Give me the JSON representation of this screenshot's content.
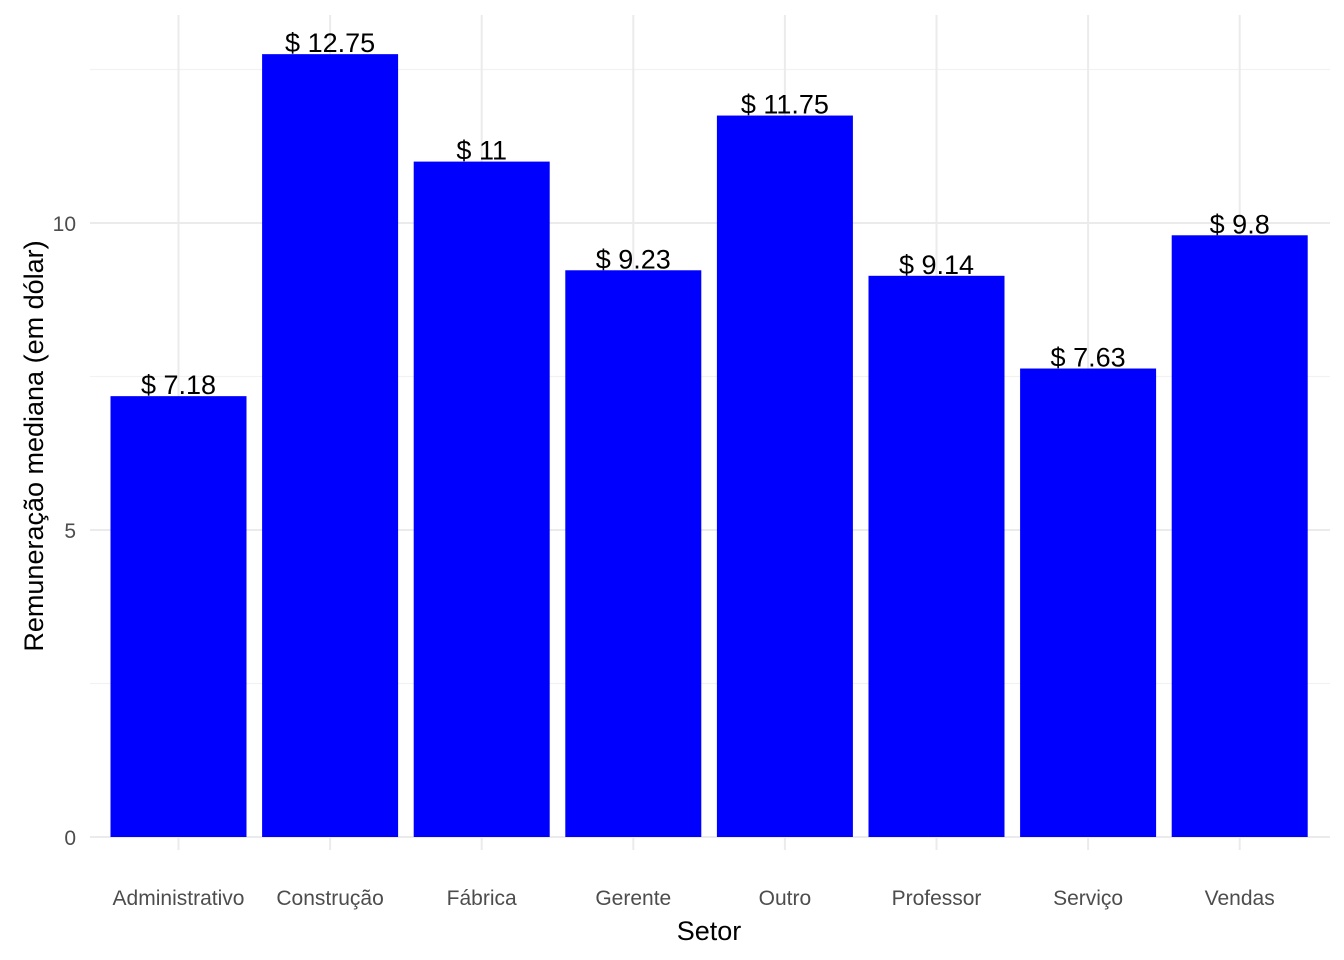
{
  "chart_data": {
    "type": "bar",
    "title": "",
    "xlabel": "Setor",
    "ylabel": "Remuneração mediana (em dólar)",
    "categories": [
      "Administrativo",
      "Construção",
      "Fábrica",
      "Gerente",
      "Outro",
      "Professor",
      "Serviço",
      "Vendas"
    ],
    "values": [
      7.18,
      12.75,
      11,
      9.23,
      11.75,
      9.14,
      7.63,
      9.8
    ],
    "data_labels": [
      "$ 7.18",
      "$ 12.75",
      "$ 11",
      "$ 9.23",
      "$ 11.75",
      "$ 9.14",
      "$ 7.63",
      "$ 9.8"
    ],
    "ylim": [
      0,
      13.1
    ],
    "yticks": [
      0,
      5,
      10
    ],
    "ytick_labels": [
      "0",
      "5",
      "10"
    ],
    "bar_color": "#0000ff",
    "grid": true,
    "legend": "none"
  }
}
